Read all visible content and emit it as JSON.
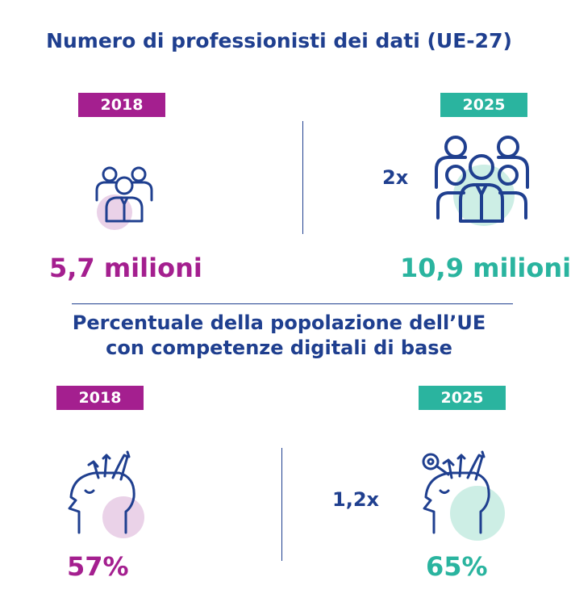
{
  "section1": {
    "title": "Numero di professionisti dei dati (UE-27)",
    "left": {
      "year": "2018",
      "value": "5,7 milioni",
      "icon": "people-group-icon"
    },
    "right": {
      "year": "2025",
      "value": "10,9 milioni",
      "multiplier": "2x",
      "icon": "people-group-icon"
    }
  },
  "section2": {
    "title_line1": "Percentuale della popolazione dell’UE",
    "title_line2": "con competenze digitali di base",
    "left": {
      "year": "2018",
      "value": "57%",
      "icon": "head-tools-icon"
    },
    "right": {
      "year": "2025",
      "value": "65%",
      "multiplier": "1,2x",
      "icon": "head-tools-icon"
    }
  },
  "colors": {
    "navy": "#1f3f8f",
    "purple": "#a41f8f",
    "teal": "#2ab49f",
    "purple_soft": "#ead2e8",
    "teal_soft": "#cdeee5"
  }
}
